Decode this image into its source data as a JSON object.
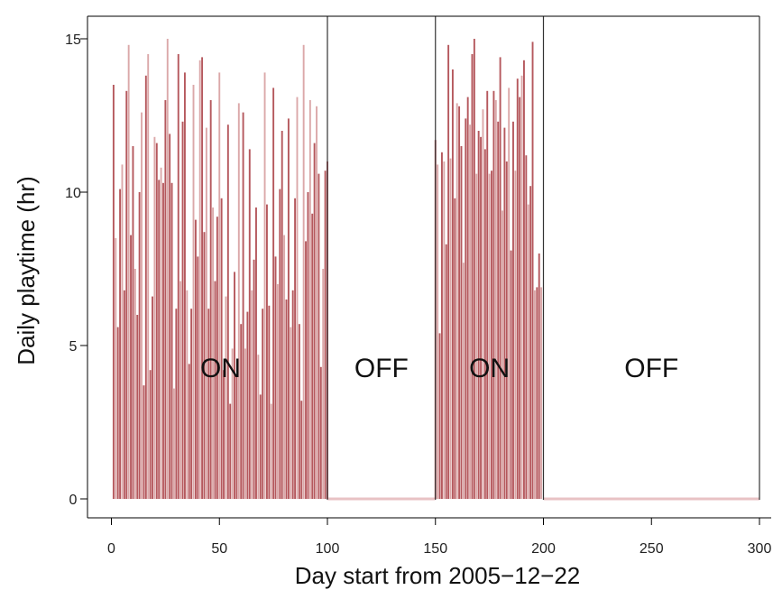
{
  "chart_data": {
    "type": "bar",
    "title": "",
    "xlabel": "Day start from 2005−12−22",
    "ylabel": "Daily playtime (hr)",
    "xlim": [
      0,
      300
    ],
    "ylim": [
      0,
      15
    ],
    "xticks": [
      0,
      50,
      100,
      150,
      200,
      250,
      300
    ],
    "yticks": [
      0,
      5,
      10,
      15
    ],
    "grid": false,
    "legend": "none",
    "bar_color": "#b5585d",
    "bar_color_light": "#dba8a9",
    "baseline_color": "#e8c2c4",
    "phase_boundaries": [
      100,
      150,
      200,
      300
    ],
    "phases": [
      {
        "label": "ON",
        "start": 1,
        "end": 100
      },
      {
        "label": "OFF",
        "start": 100,
        "end": 150
      },
      {
        "label": "ON",
        "start": 150,
        "end": 200
      },
      {
        "label": "OFF",
        "start": 200,
        "end": 300
      }
    ],
    "on1_values": [
      13.5,
      8.5,
      5.6,
      10.1,
      10.9,
      6.8,
      13.3,
      14.8,
      8.6,
      11.5,
      7.5,
      6.0,
      10.0,
      12.6,
      3.7,
      13.8,
      14.5,
      4.2,
      6.6,
      11.8,
      11.6,
      10.4,
      10.8,
      10.3,
      13.0,
      15.0,
      11.9,
      10.3,
      3.6,
      6.2,
      14.5,
      7.1,
      12.3,
      13.9,
      6.8,
      4.4,
      6.2,
      13.5,
      9.1,
      7.9,
      14.3,
      14.4,
      8.7,
      12.1,
      6.2,
      13.0,
      9.5,
      7.1,
      9.2,
      13.9,
      9.8,
      4.2,
      6.6,
      12.2,
      3.1,
      4.9,
      7.4,
      4.0,
      12.9,
      5.7,
      12.6,
      4.9,
      6.1,
      11.4,
      6.8,
      7.8,
      9.5,
      4.7,
      3.4,
      6.2,
      13.9,
      9.6,
      6.3,
      3.1,
      13.4,
      7.9,
      7.0,
      10.1,
      12.0,
      8.6,
      6.5,
      12.4,
      5.6,
      6.8,
      9.8,
      13.1,
      5.7,
      3.2,
      14.8,
      8.4,
      10.0,
      13.0,
      9.3,
      11.6,
      12.8,
      10.6,
      4.3,
      7.5,
      10.7,
      11.0
    ],
    "on2_values": [
      11.7,
      10.9,
      5.4,
      11.3,
      11.0,
      8.3,
      14.8,
      11.1,
      14.0,
      9.8,
      12.9,
      12.8,
      11.5,
      7.7,
      12.4,
      13.1,
      12.2,
      14.5,
      15.0,
      10.6,
      12.0,
      11.8,
      12.7,
      11.4,
      13.3,
      10.6,
      10.7,
      13.3,
      13.0,
      12.3,
      14.4,
      9.4,
      12.1,
      11.0,
      13.4,
      8.1,
      12.3,
      10.7,
      13.7,
      13.1,
      13.8,
      14.3,
      11.2,
      9.6,
      10.2,
      14.9,
      6.8,
      6.9,
      8.0,
      6.9
    ]
  }
}
